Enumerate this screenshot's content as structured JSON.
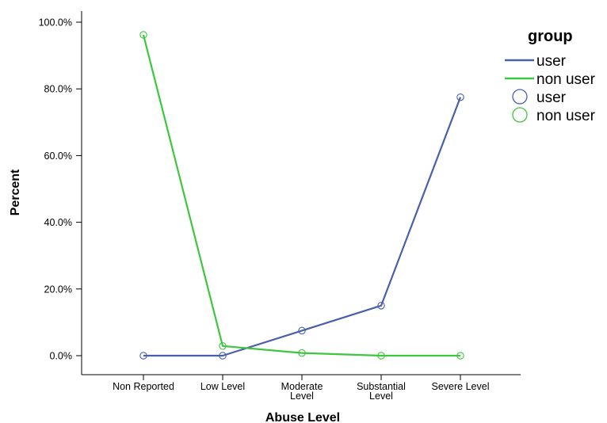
{
  "chart_data": {
    "type": "line",
    "xlabel": "Abuse Level",
    "ylabel": "Percent",
    "categories": [
      [
        "Non Reported"
      ],
      [
        "Low Level"
      ],
      [
        "Moderate",
        "Level"
      ],
      [
        "Substantial",
        "Level"
      ],
      [
        "Severe Level"
      ]
    ],
    "y_ticks": [
      "0.0%",
      "20.0%",
      "40.0%",
      "60.0%",
      "80.0%",
      "100.0%"
    ],
    "ylim": [
      0,
      100
    ],
    "grid": false,
    "legend_position": "top-right",
    "legend": {
      "title": "group",
      "line_entries": [
        "user",
        "non user"
      ],
      "marker_entries": [
        "user",
        "non user"
      ]
    },
    "series": [
      {
        "name": "user",
        "color": "#4a5fac",
        "values": [
          0.0,
          0.0,
          7.5,
          15.0,
          77.5
        ]
      },
      {
        "name": "non user",
        "color": "#3ec63e",
        "values": [
          96.2,
          2.9,
          0.8,
          0.0,
          0.0
        ]
      }
    ]
  }
}
